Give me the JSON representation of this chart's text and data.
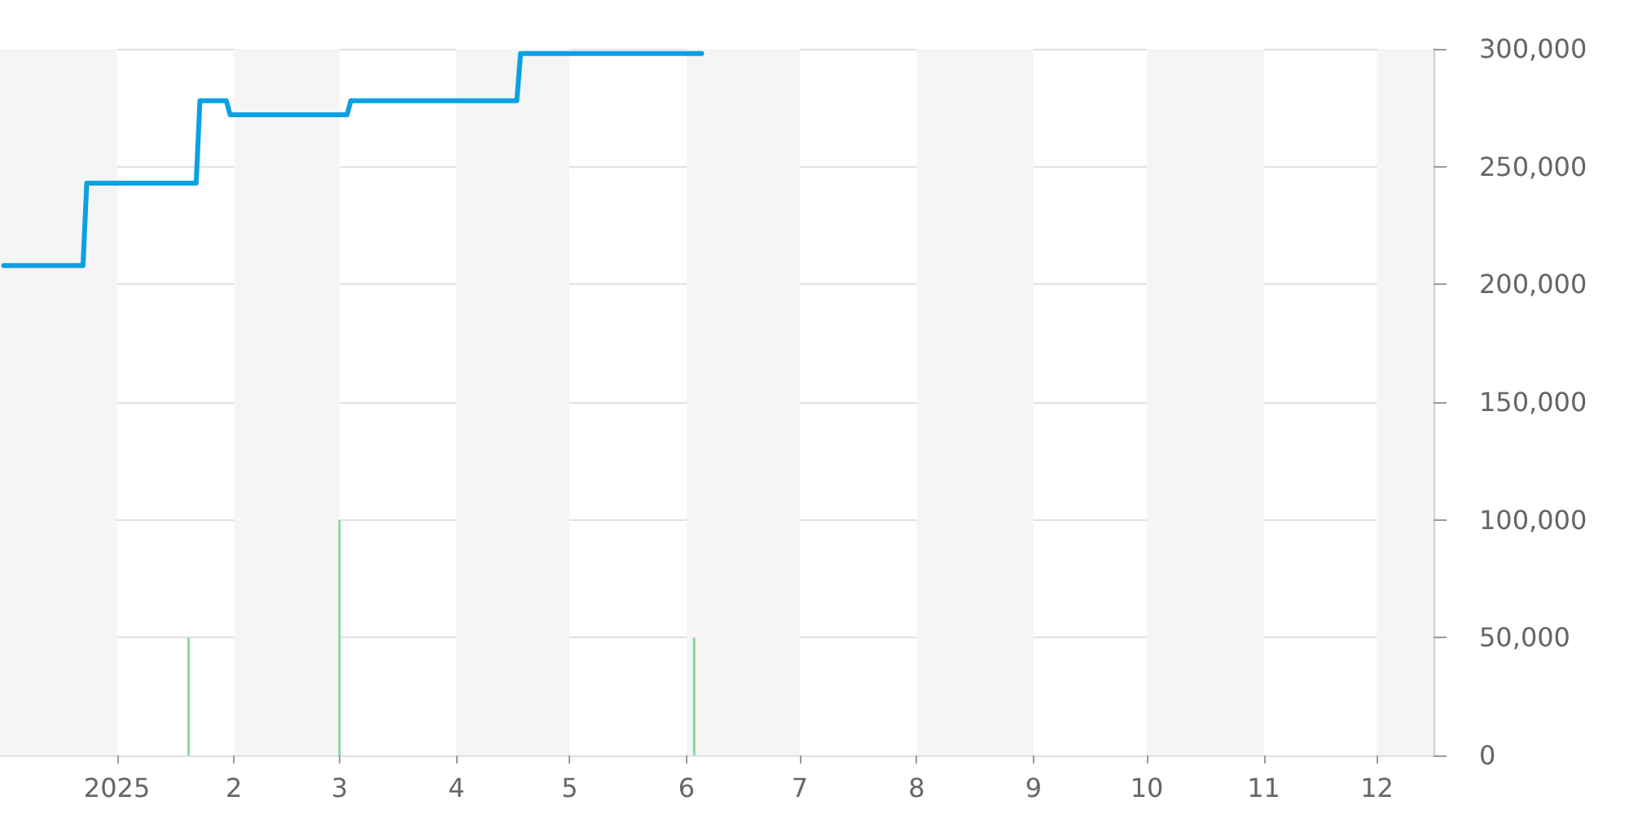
{
  "chart_data": {
    "type": "line",
    "series": [
      {
        "color": "#0aa0e4",
        "x": [
          "2024-12-02",
          "2024-12-23",
          "2024-12-24",
          "2025-01-22",
          "2025-01-23",
          "2025-01-30",
          "2025-01-31",
          "2025-03-03",
          "2025-03-04",
          "2025-04-17",
          "2025-04-18",
          "2025-06-05"
        ],
        "values": [
          208000,
          208000,
          243000,
          243000,
          278000,
          278000,
          272000,
          272000,
          278000,
          278000,
          298000,
          298000
        ]
      },
      {
        "type": "bar",
        "color": "#8ed69b",
        "x": [
          "2025-01-20",
          "2025-03-01",
          "2025-06-03"
        ],
        "values": [
          50000,
          100000,
          50000
        ]
      }
    ],
    "xlim": [
      "2024-12-01",
      "2025-12-16"
    ],
    "xticks": [
      {
        "value": "2025-01-01",
        "label": "2025"
      },
      {
        "value": "2025-02-01",
        "label": "2"
      },
      {
        "value": "2025-03-01",
        "label": "3"
      },
      {
        "value": "2025-04-01",
        "label": "4"
      },
      {
        "value": "2025-05-01",
        "label": "5"
      },
      {
        "value": "2025-06-01",
        "label": "6"
      },
      {
        "value": "2025-07-01",
        "label": "7"
      },
      {
        "value": "2025-08-01",
        "label": "8"
      },
      {
        "value": "2025-09-01",
        "label": "9"
      },
      {
        "value": "2025-10-01",
        "label": "10"
      },
      {
        "value": "2025-11-01",
        "label": "11"
      },
      {
        "value": "2025-12-01",
        "label": "12"
      }
    ],
    "ylim": [
      0,
      300000
    ],
    "yticks": [
      0,
      {
        "value": 50000,
        "label": "50,000"
      },
      {
        "value": 100000,
        "label": "100,000"
      },
      {
        "value": 150000,
        "label": "150,000"
      },
      {
        "value": 200000,
        "label": "200,000"
      },
      {
        "value": 250000,
        "label": "250,000"
      },
      {
        "value": 300000,
        "label": "300,000"
      }
    ],
    "grid": "y",
    "marker": "none",
    "line_style": "solid",
    "bands": [
      {
        "axis": "x",
        "from": "2024-12-01",
        "to": "2025-01-01",
        "color": "#f5f5f5"
      },
      {
        "axis": "x",
        "from": "2025-02-01",
        "to": "2025-03-01",
        "color": "#f5f5f5"
      },
      {
        "axis": "x",
        "from": "2025-04-01",
        "to": "2025-05-01",
        "color": "#f5f5f5"
      },
      {
        "axis": "x",
        "from": "2025-06-01",
        "to": "2025-07-01",
        "color": "#f5f5f5"
      },
      {
        "axis": "x",
        "from": "2025-08-01",
        "to": "2025-09-01",
        "color": "#f5f5f5"
      },
      {
        "axis": "x",
        "from": "2025-10-01",
        "to": "2025-11-01",
        "color": "#f5f5f5"
      },
      {
        "axis": "x",
        "from": "2025-12-01",
        "to": "2025-12-16",
        "color": "#f5f5f5"
      }
    ]
  }
}
